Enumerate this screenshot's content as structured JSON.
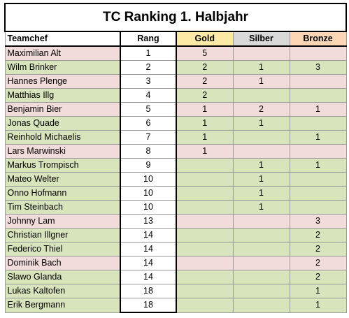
{
  "title": "TC Ranking 1. Halbjahr",
  "headers": {
    "teamchef": "Teamchef",
    "rang": "Rang",
    "gold": "Gold",
    "silber": "Silber",
    "bronze": "Bronze"
  },
  "colors": {
    "gold_header": "#fde9a6",
    "silber_header": "#d9d9d9",
    "bronze_header": "#fcd5b4",
    "row_pink": "#f2dcdb",
    "row_green": "#d8e4bc"
  },
  "rows": [
    {
      "name": "Maximilian Alt",
      "rang": "1",
      "gold": "5",
      "silber": "",
      "bronze": "",
      "tone": "pink"
    },
    {
      "name": "Wilm Brinker",
      "rang": "2",
      "gold": "2",
      "silber": "1",
      "bronze": "3",
      "tone": "green"
    },
    {
      "name": "Hannes Plenge",
      "rang": "3",
      "gold": "2",
      "silber": "1",
      "bronze": "",
      "tone": "pink"
    },
    {
      "name": "Matthias Illg",
      "rang": "4",
      "gold": "2",
      "silber": "",
      "bronze": "",
      "tone": "green"
    },
    {
      "name": "Benjamin Bier",
      "rang": "5",
      "gold": "1",
      "silber": "2",
      "bronze": "1",
      "tone": "pink"
    },
    {
      "name": "Jonas Quade",
      "rang": "6",
      "gold": "1",
      "silber": "1",
      "bronze": "",
      "tone": "green"
    },
    {
      "name": "Reinhold Michaelis",
      "rang": "7",
      "gold": "1",
      "silber": "",
      "bronze": "1",
      "tone": "green"
    },
    {
      "name": "Lars Marwinski",
      "rang": "8",
      "gold": "1",
      "silber": "",
      "bronze": "",
      "tone": "pink"
    },
    {
      "name": "Markus Trompisch",
      "rang": "9",
      "gold": "",
      "silber": "1",
      "bronze": "1",
      "tone": "green"
    },
    {
      "name": "Mateo Welter",
      "rang": "10",
      "gold": "",
      "silber": "1",
      "bronze": "",
      "tone": "green"
    },
    {
      "name": "Onno Hofmann",
      "rang": "10",
      "gold": "",
      "silber": "1",
      "bronze": "",
      "tone": "green"
    },
    {
      "name": "Tim Steinbach",
      "rang": "10",
      "gold": "",
      "silber": "1",
      "bronze": "",
      "tone": "green"
    },
    {
      "name": "Johnny Lam",
      "rang": "13",
      "gold": "",
      "silber": "",
      "bronze": "3",
      "tone": "pink"
    },
    {
      "name": "Christian Illgner",
      "rang": "14",
      "gold": "",
      "silber": "",
      "bronze": "2",
      "tone": "green"
    },
    {
      "name": "Federico Thiel",
      "rang": "14",
      "gold": "",
      "silber": "",
      "bronze": "2",
      "tone": "green"
    },
    {
      "name": "Dominik Bach",
      "rang": "14",
      "gold": "",
      "silber": "",
      "bronze": "2",
      "tone": "pink"
    },
    {
      "name": "Slawo Glanda",
      "rang": "14",
      "gold": "",
      "silber": "",
      "bronze": "2",
      "tone": "green"
    },
    {
      "name": "Lukas Kaltofen",
      "rang": "18",
      "gold": "",
      "silber": "",
      "bronze": "1",
      "tone": "green"
    },
    {
      "name": "Erik Bergmann",
      "rang": "18",
      "gold": "",
      "silber": "",
      "bronze": "1",
      "tone": "green"
    }
  ]
}
